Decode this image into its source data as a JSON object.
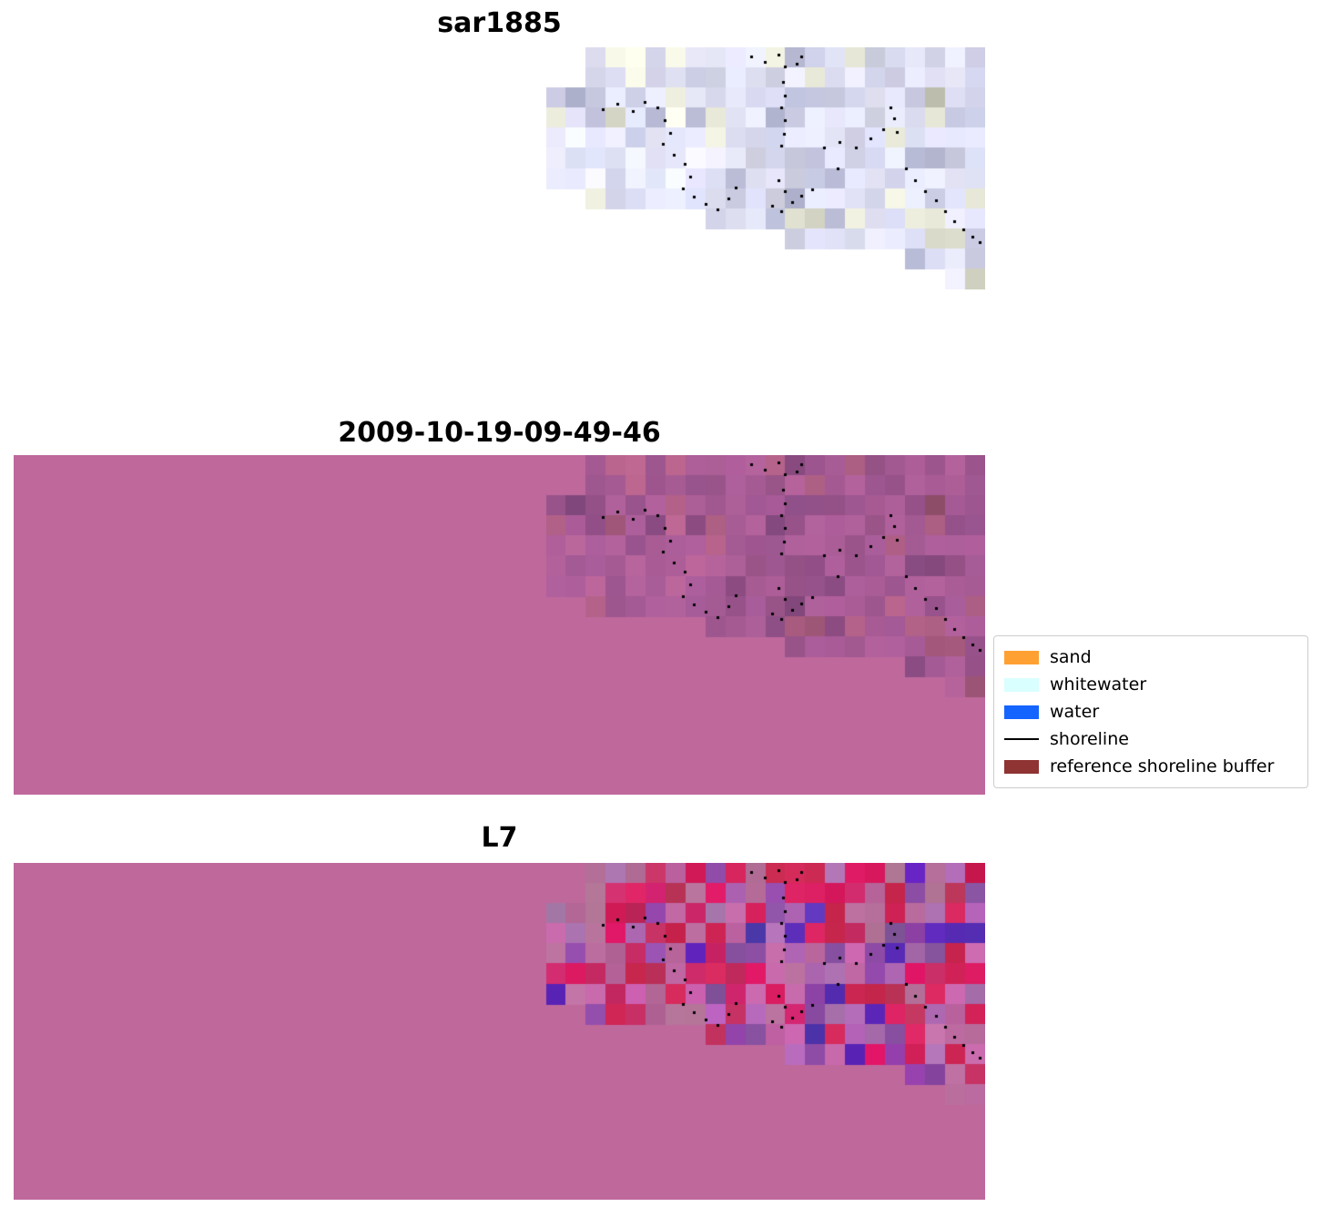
{
  "chart_data": {
    "type": "heatmap",
    "figure_background": "#FFFFFF",
    "panels": [
      {
        "id": "sar1885",
        "title": "sar1885",
        "kind": "sar",
        "background": null,
        "noise_seed": 7,
        "description": "pixelated light blue-gray SAR backscatter image occupying upper-right stepped region, with black shoreline point markers"
      },
      {
        "id": "classified",
        "title": "2009-10-19-09-49-46",
        "kind": "mul",
        "background": "#BF689C",
        "noise_seed": 7,
        "description": "full pink-mauve reference shoreline buffer overlay; SAR image shows through as darker purple stepped region in upper right with black shoreline points"
      },
      {
        "id": "l7",
        "title": "L7",
        "kind": "l7",
        "background": "#BF689C",
        "noise_seed": 13,
        "palette": [
          "#D4215A",
          "#C62D63",
          "#8C4BA4",
          "#B06CB4",
          "#BE6CA2",
          "#5B2EB8"
        ],
        "palette_weights": [
          0.28,
          0.14,
          0.16,
          0.1,
          0.27,
          0.05
        ],
        "description": "full pink-mauve overlay; upper-right stepped region shows noisy red/crimson/purple classified Landsat-7 pixels with black shoreline points"
      }
    ],
    "region": {
      "cols": 22,
      "rows": 12,
      "top_row_by_col": [
        2,
        2,
        0,
        0,
        0,
        0,
        0,
        0,
        0,
        0,
        0,
        0,
        0,
        0,
        0,
        0,
        0,
        0,
        0,
        0,
        0,
        0
      ],
      "bottom_row_by_col": [
        7,
        7,
        8,
        8,
        8,
        8,
        8,
        8,
        9,
        9,
        9,
        9,
        10,
        10,
        10,
        10,
        10,
        10,
        11,
        11,
        12,
        12
      ]
    },
    "shoreline_points": [
      [
        62,
        68
      ],
      [
        78,
        62
      ],
      [
        95,
        70
      ],
      [
        108,
        60
      ],
      [
        122,
        66
      ],
      [
        130,
        80
      ],
      [
        136,
        94
      ],
      [
        128,
        106
      ],
      [
        140,
        118
      ],
      [
        152,
        128
      ],
      [
        158,
        142
      ],
      [
        150,
        155
      ],
      [
        162,
        164
      ],
      [
        175,
        172
      ],
      [
        188,
        178
      ],
      [
        200,
        166
      ],
      [
        208,
        154
      ],
      [
        225,
        10
      ],
      [
        240,
        16
      ],
      [
        255,
        8
      ],
      [
        262,
        21
      ],
      [
        275,
        18
      ],
      [
        280,
        10
      ],
      [
        260,
        38
      ],
      [
        262,
        53
      ],
      [
        258,
        66
      ],
      [
        262,
        80
      ],
      [
        261,
        95
      ],
      [
        258,
        108
      ],
      [
        320,
        133
      ],
      [
        255,
        146
      ],
      [
        262,
        158
      ],
      [
        270,
        170
      ],
      [
        258,
        180
      ],
      [
        248,
        174
      ],
      [
        280,
        163
      ],
      [
        292,
        156
      ],
      [
        305,
        110
      ],
      [
        322,
        104
      ],
      [
        340,
        110
      ],
      [
        356,
        100
      ],
      [
        370,
        90
      ],
      [
        382,
        78
      ],
      [
        378,
        66
      ],
      [
        385,
        93
      ],
      [
        395,
        133
      ],
      [
        405,
        146
      ],
      [
        416,
        158
      ],
      [
        428,
        168
      ],
      [
        438,
        180
      ],
      [
        448,
        191
      ],
      [
        458,
        200
      ],
      [
        468,
        208
      ],
      [
        476,
        214
      ]
    ],
    "legend": {
      "items": [
        {
          "label": "sand",
          "color": "#FFA033",
          "swatch": "patch"
        },
        {
          "label": "whitewater",
          "color": "#D9FFFF",
          "swatch": "patch"
        },
        {
          "label": "water",
          "color": "#1464FF",
          "swatch": "patch"
        },
        {
          "label": "shoreline",
          "color": "#000000",
          "swatch": "line"
        },
        {
          "label": "reference shoreline buffer",
          "color": "#8F3333",
          "swatch": "patch"
        }
      ]
    }
  }
}
